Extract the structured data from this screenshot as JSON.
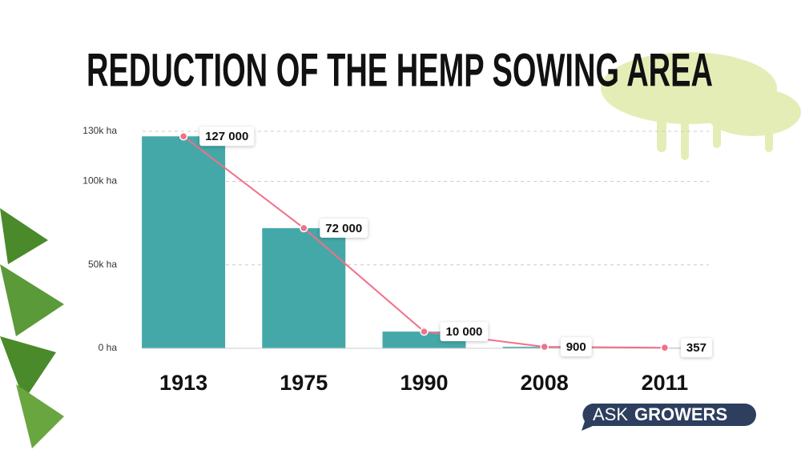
{
  "chart_data": {
    "type": "bar",
    "title": "REDUCTION OF THE HEMP SOWING AREA",
    "categories": [
      "1913",
      "1975",
      "1990",
      "2008",
      "2011"
    ],
    "values": [
      127000,
      72000,
      10000,
      900,
      357
    ],
    "value_labels": [
      "127 000",
      "72 000",
      "10 000",
      "900",
      "357"
    ],
    "color": "#45a8a8",
    "line_color": "#f07088",
    "overlay_line": true,
    "ylim": [
      0,
      130000
    ],
    "yticks": [
      {
        "value": 0,
        "label": "0 ha"
      },
      {
        "value": 50000,
        "label": "50k ha"
      },
      {
        "value": 100000,
        "label": "100k ha"
      },
      {
        "value": 130000,
        "label": "130k ha"
      }
    ],
    "grid": true
  },
  "brand": {
    "prefix": "ASK",
    "name": "GROWERS"
  }
}
